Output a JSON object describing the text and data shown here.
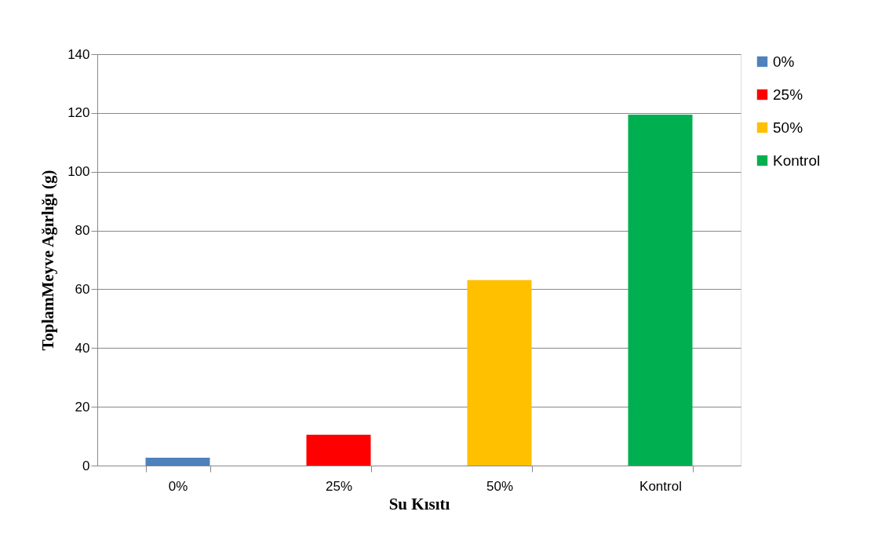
{
  "chart_data": {
    "type": "bar",
    "xlabel": "Su Kısıtı",
    "ylabel": "ToplamMeyve Ağırlığı (g)",
    "categories": [
      "0%",
      "25%",
      "50%",
      "Kontrol"
    ],
    "series": [
      {
        "name": "0%",
        "color": "#4f81bd",
        "values": [
          2.7,
          null,
          null,
          null
        ]
      },
      {
        "name": "25%",
        "color": "#ff0000",
        "values": [
          null,
          10.5,
          null,
          null
        ]
      },
      {
        "name": "50%",
        "color": "#ffc000",
        "values": [
          null,
          null,
          63.1,
          null
        ]
      },
      {
        "name": "Kontrol",
        "color": "#00b050",
        "values": [
          null,
          null,
          null,
          119.4
        ]
      }
    ],
    "ylim": [
      0,
      140
    ],
    "yticks": [
      0,
      20,
      40,
      60,
      80,
      100,
      120,
      140
    ],
    "grid": "y",
    "legend": "right"
  }
}
